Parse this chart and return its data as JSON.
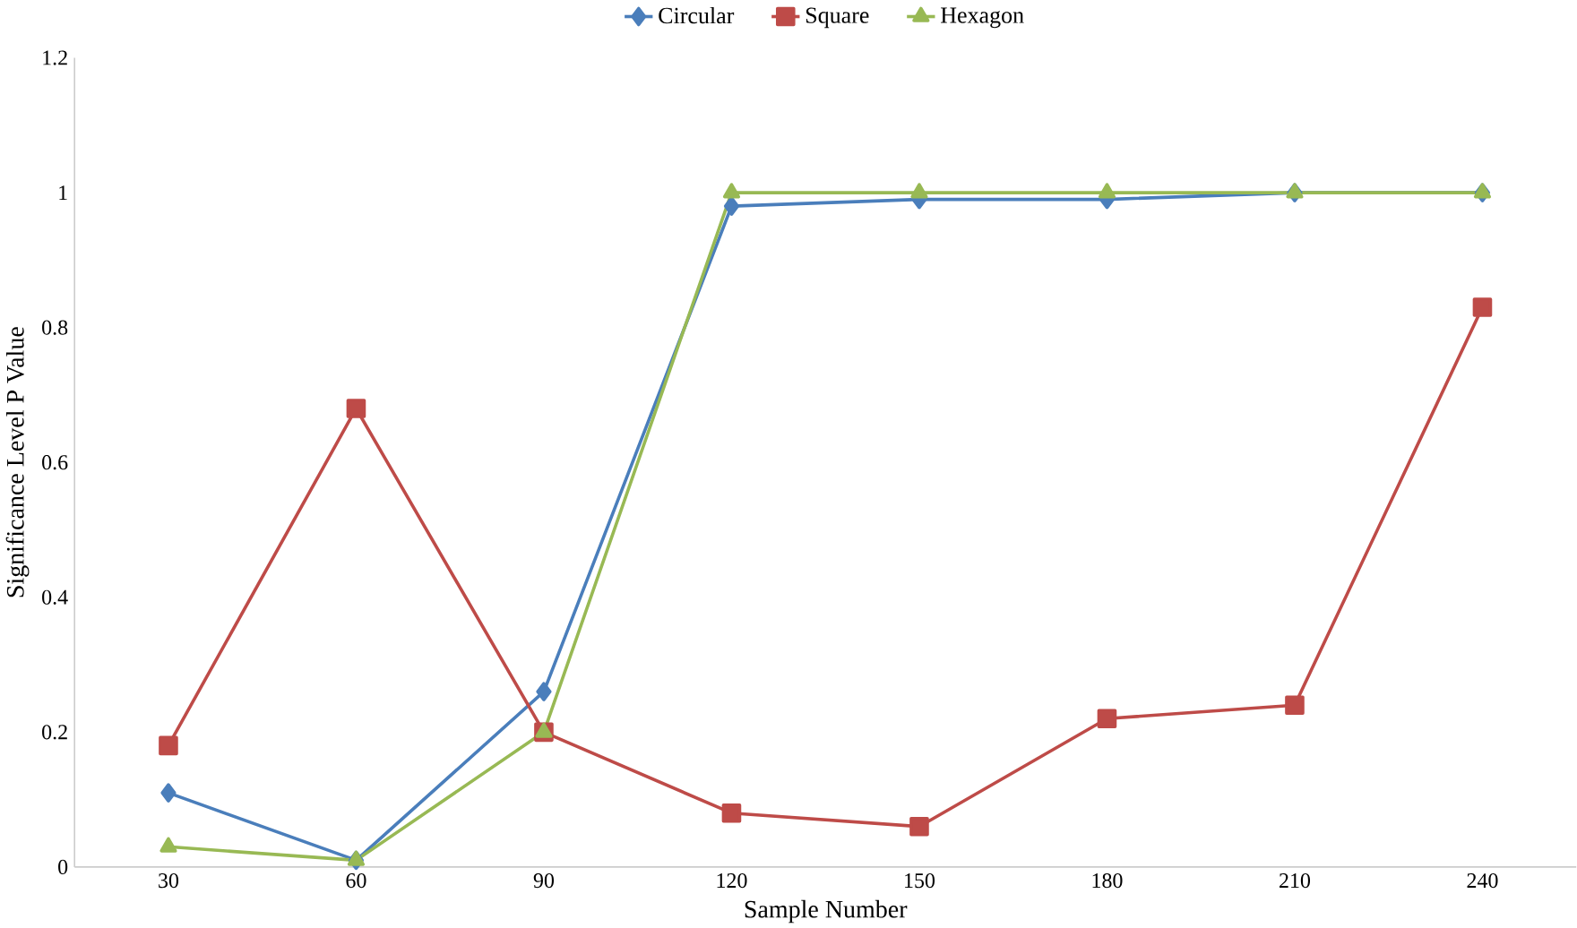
{
  "chart_data": {
    "type": "line",
    "xlabel": "Sample Number",
    "ylabel": "Significance Level P Value",
    "categories": [
      "30",
      "60",
      "90",
      "120",
      "150",
      "180",
      "210",
      "240"
    ],
    "series": [
      {
        "name": "Circular",
        "color": "#4a7ebb",
        "marker": "diamond",
        "values": [
          0.11,
          0.01,
          0.26,
          0.98,
          0.99,
          0.99,
          1.0,
          1.0
        ]
      },
      {
        "name": "Square",
        "color": "#be4b48",
        "marker": "square",
        "values": [
          0.18,
          0.68,
          0.2,
          0.08,
          0.06,
          0.22,
          0.24,
          0.83
        ]
      },
      {
        "name": "Hexagon",
        "color": "#98b954",
        "marker": "triangle",
        "values": [
          0.03,
          0.01,
          0.2,
          1.0,
          1.0,
          1.0,
          1.0,
          1.0
        ]
      }
    ],
    "ylim": [
      0,
      1.2
    ],
    "yticks": [
      0,
      0.2,
      0.4,
      0.6,
      0.8,
      1,
      1.2
    ],
    "grid": false,
    "legend": "top",
    "line_style": "solid"
  }
}
